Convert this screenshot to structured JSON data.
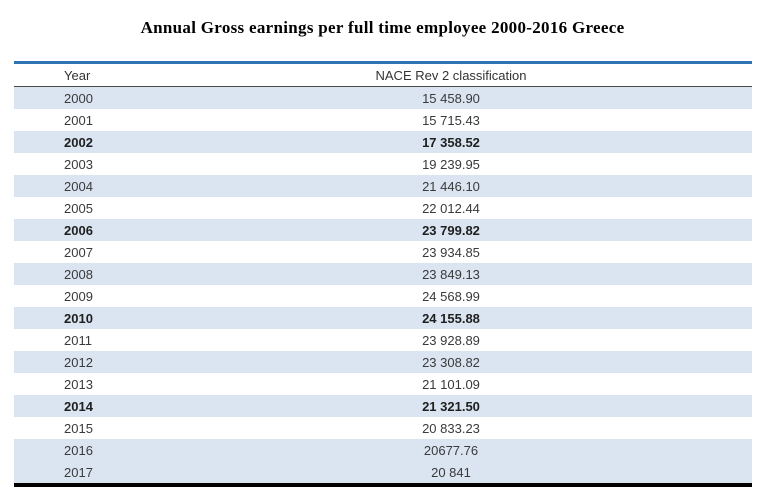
{
  "title": "Annual Gross earnings per full time employee 2000-2016 Greece",
  "colors": {
    "top_rule": "#2e74b5",
    "row_stripe": "#dbe5f1",
    "bottom_rule": "#000000"
  },
  "chart_data": {
    "type": "table",
    "title": "Annual Gross earnings per full time employee 2000-2016 Greece",
    "columns": [
      "Year",
      "NACE Rev 2 classification"
    ],
    "rows": [
      {
        "year": "2000",
        "value_display": "15 458.90",
        "value": 15458.9,
        "bold": false,
        "shaded": true
      },
      {
        "year": "2001",
        "value_display": "15 715.43",
        "value": 15715.43,
        "bold": false,
        "shaded": false
      },
      {
        "year": "2002",
        "value_display": "17 358.52",
        "value": 17358.52,
        "bold": true,
        "shaded": true
      },
      {
        "year": "2003",
        "value_display": "19 239.95",
        "value": 19239.95,
        "bold": false,
        "shaded": false
      },
      {
        "year": "2004",
        "value_display": "21 446.10",
        "value": 21446.1,
        "bold": false,
        "shaded": true
      },
      {
        "year": "2005",
        "value_display": "22 012.44",
        "value": 22012.44,
        "bold": false,
        "shaded": false
      },
      {
        "year": "2006",
        "value_display": "23 799.82",
        "value": 23799.82,
        "bold": true,
        "shaded": true
      },
      {
        "year": "2007",
        "value_display": "23 934.85",
        "value": 23934.85,
        "bold": false,
        "shaded": false
      },
      {
        "year": "2008",
        "value_display": "23 849.13",
        "value": 23849.13,
        "bold": false,
        "shaded": true
      },
      {
        "year": "2009",
        "value_display": "24 568.99",
        "value": 24568.99,
        "bold": false,
        "shaded": false
      },
      {
        "year": "2010",
        "value_display": "24 155.88",
        "value": 24155.88,
        "bold": true,
        "shaded": true
      },
      {
        "year": "2011",
        "value_display": "23 928.89",
        "value": 23928.89,
        "bold": false,
        "shaded": false
      },
      {
        "year": "2012",
        "value_display": "23 308.82",
        "value": 23308.82,
        "bold": false,
        "shaded": true
      },
      {
        "year": "2013",
        "value_display": "21 101.09",
        "value": 21101.09,
        "bold": false,
        "shaded": false
      },
      {
        "year": "2014",
        "value_display": "21 321.50",
        "value": 21321.5,
        "bold": true,
        "shaded": true
      },
      {
        "year": "2015",
        "value_display": "20 833.23",
        "value": 20833.23,
        "bold": false,
        "shaded": false
      },
      {
        "year": "2016",
        "value_display": "20677.76",
        "value": 20677.76,
        "bold": false,
        "shaded": true
      },
      {
        "year": "2017",
        "value_display": "20 841",
        "value": 20841,
        "bold": false,
        "shaded": true
      }
    ]
  }
}
